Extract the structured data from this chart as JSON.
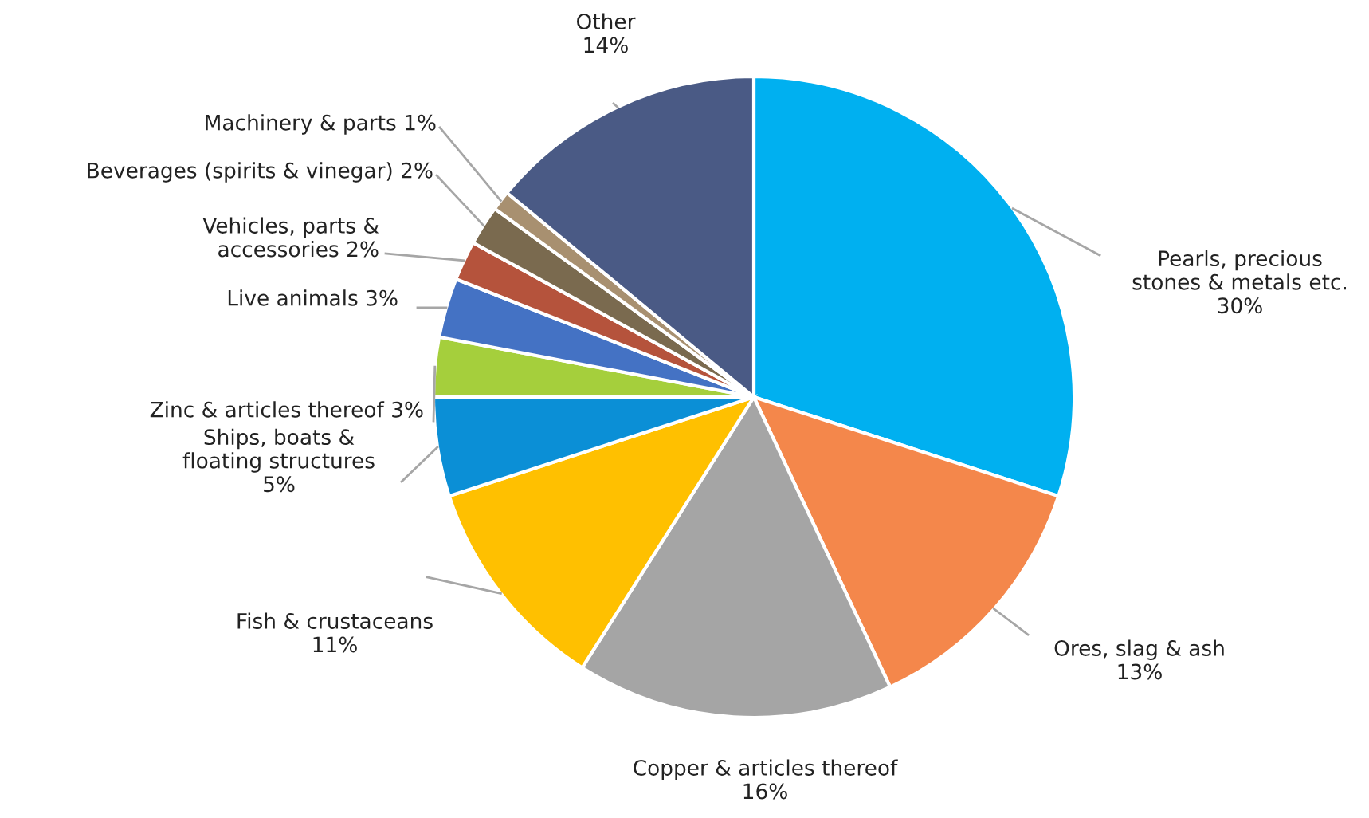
{
  "chart_data": {
    "type": "pie",
    "categories": [
      "Pearls, precious\nstones & metals etc.",
      "Ores, slag & ash",
      "Copper & articles thereof",
      "Fish & crustaceans",
      "Ships, boats &\nfloating structures",
      "Zinc & articles thereof",
      "Live animals",
      "Vehicles, parts &\naccessories",
      "Beverages (spirits & vinegar)",
      "Machinery & parts",
      "Other"
    ],
    "values": [
      30,
      13,
      16,
      11,
      5,
      3,
      3,
      2,
      2,
      1,
      14
    ],
    "value_labels": [
      "30%",
      "13%",
      "16%",
      "11%",
      "5%",
      "3%",
      "3%",
      "2%",
      "2%",
      "1%",
      "14%"
    ],
    "colors": [
      "#00b0f0",
      "#f4874b",
      "#a5a5a5",
      "#ffc000",
      "#0b8fd6",
      "#a5cf3c",
      "#4472c4",
      "#b5533c",
      "#7a6a4f",
      "#a89070",
      "#4a5a85"
    ],
    "legend": false
  }
}
